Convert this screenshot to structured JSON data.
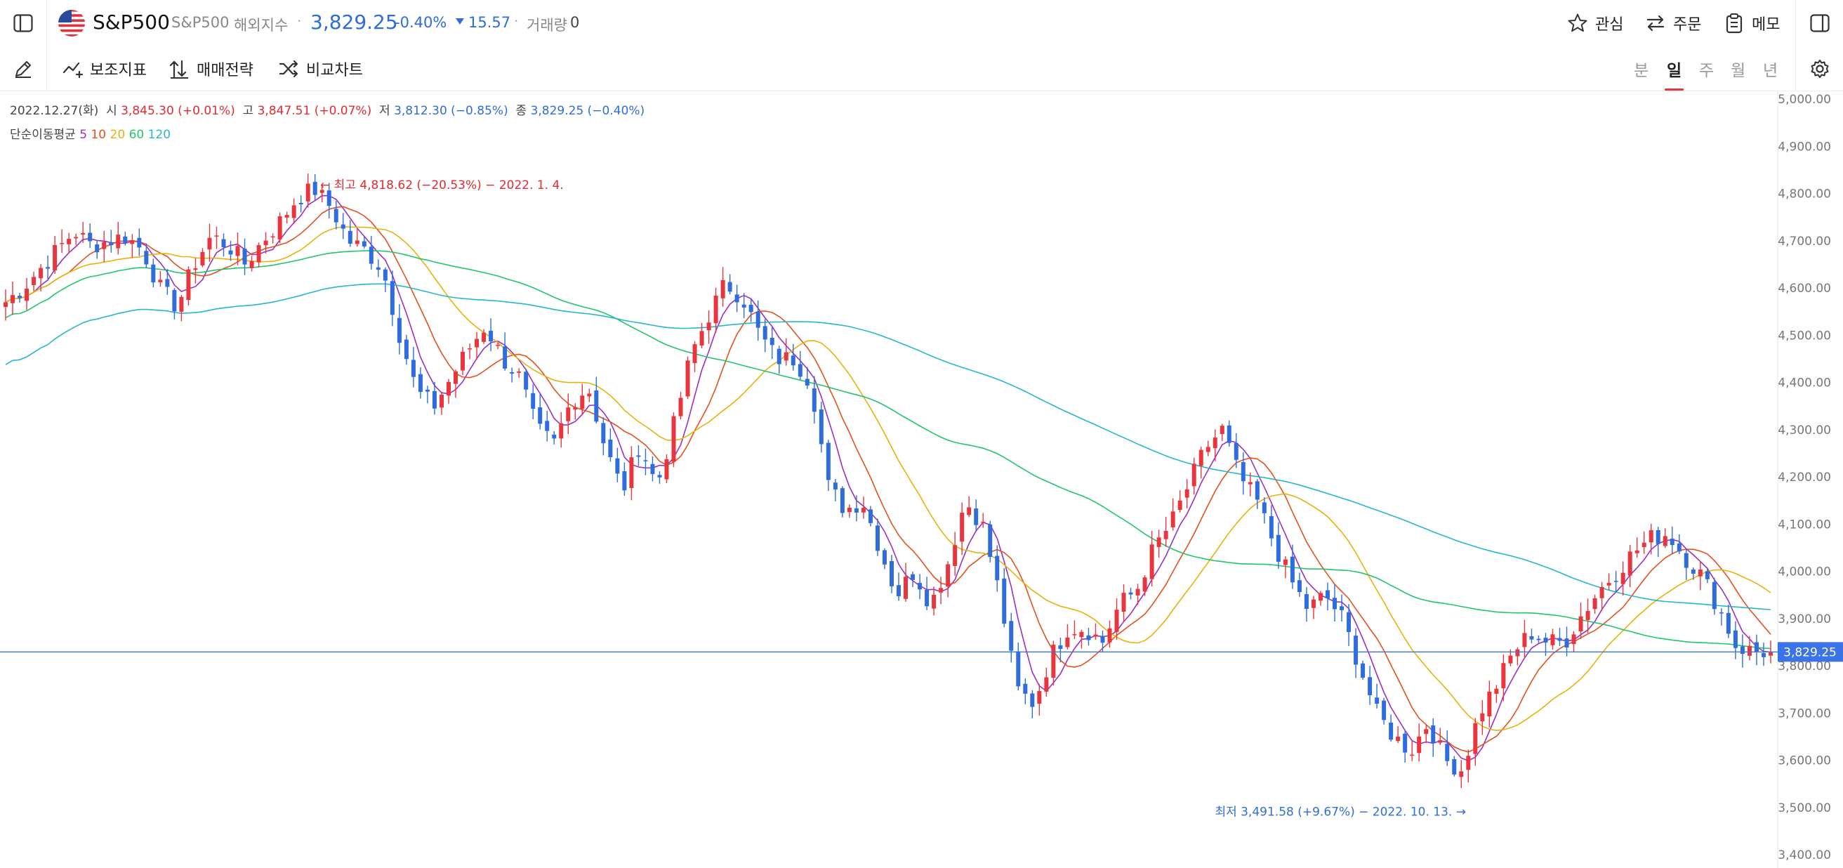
{
  "header": {
    "instrument_name": "S&P500",
    "ticker": "S&P500",
    "market": "해외지수",
    "price": "3,829.25",
    "change_pct": "-0.40%",
    "change_abs": "15.57",
    "volume_label": "거래량",
    "volume_value": "0",
    "watch_label": "관심",
    "order_label": "주문",
    "memo_label": "메모"
  },
  "toolbar": {
    "indicators_label": "보조지표",
    "strategy_label": "매매전략",
    "compare_label": "비교차트",
    "periods": [
      "분",
      "일",
      "주",
      "월",
      "년"
    ],
    "active_period": "일"
  },
  "ohlc": {
    "date": "2022.12.27(화)",
    "open_label": "시",
    "open": "3,845.30 (+0.01%)",
    "high_label": "고",
    "high": "3,847.51 (+0.07%)",
    "low_label": "저",
    "low": "3,812.30 (−0.85%)",
    "close_label": "종",
    "close": "3,829.25 (−0.40%)"
  },
  "ma_legend": {
    "label": "단순이동평균",
    "periods": [
      "5",
      "10",
      "20",
      "60",
      "120"
    ],
    "colors": [
      "#9b2fc4",
      "#e2521d",
      "#e8b20c",
      "#22c46f",
      "#28b7c9"
    ]
  },
  "annotations": {
    "high": "← 최고 4,818.62 (−20.53%) − 2022. 1. 4.",
    "low": "최저 3,491.58 (+9.67%) − 2022. 10. 13. →"
  },
  "colors": {
    "up": "#e8353e",
    "down": "#2f6cdc",
    "last_price": "#3a74e8"
  },
  "chart_data": {
    "type": "candlestick",
    "ylim": [
      3400,
      5000
    ],
    "y_ticks": [
      "5,000.00",
      "4,900.00",
      "4,800.00",
      "4,700.00",
      "4,600.00",
      "4,500.00",
      "4,400.00",
      "4,300.00",
      "4,200.00",
      "4,100.00",
      "4,000.00",
      "3,900.00",
      "3,800.00",
      "3,700.00",
      "3,600.00",
      "3,500.00",
      "3,400.00"
    ],
    "last_price": 3829.25,
    "last_price_label": "3,829.25",
    "high_point": {
      "value": 4818.62,
      "date": "2022. 1. 4."
    },
    "low_point": {
      "value": 3491.58,
      "date": "2022. 10. 13."
    },
    "close_path": [
      4570,
      4600,
      4640,
      4680,
      4720,
      4690,
      4700,
      4710,
      4680,
      4600,
      4560,
      4650,
      4710,
      4690,
      4650,
      4700,
      4740,
      4790,
      4810,
      4770,
      4700,
      4680,
      4640,
      4500,
      4380,
      4350,
      4410,
      4470,
      4520,
      4450,
      4410,
      4300,
      4270,
      4360,
      4390,
      4260,
      4170,
      4270,
      4180,
      4310,
      4460,
      4540,
      4610,
      4580,
      4500,
      4450,
      4450,
      4400,
      4180,
      4130,
      4150,
      4050,
      3950,
      4000,
      3930,
      4020,
      4150,
      4100,
      3950,
      3750,
      3720,
      3820,
      3880,
      3880,
      3850,
      3930,
      3960,
      4050,
      4100,
      4180,
      4260,
      4300,
      4200,
      4150,
      4060,
      3980,
      3920,
      3950,
      3900,
      3800,
      3700,
      3650,
      3620,
      3680,
      3600,
      3580,
      3700,
      3760,
      3830,
      3870,
      3850,
      3850,
      3910,
      3960,
      4000,
      4040,
      4070,
      4080,
      4030,
      3990,
      3920,
      3840,
      3830,
      3829.25
    ],
    "series": [
      {
        "name": "5",
        "color": "#9b2fc4"
      },
      {
        "name": "10",
        "color": "#e2521d"
      },
      {
        "name": "20",
        "color": "#e8b20c"
      },
      {
        "name": "60",
        "color": "#22c46f"
      },
      {
        "name": "120",
        "color": "#28b7c9"
      }
    ]
  }
}
